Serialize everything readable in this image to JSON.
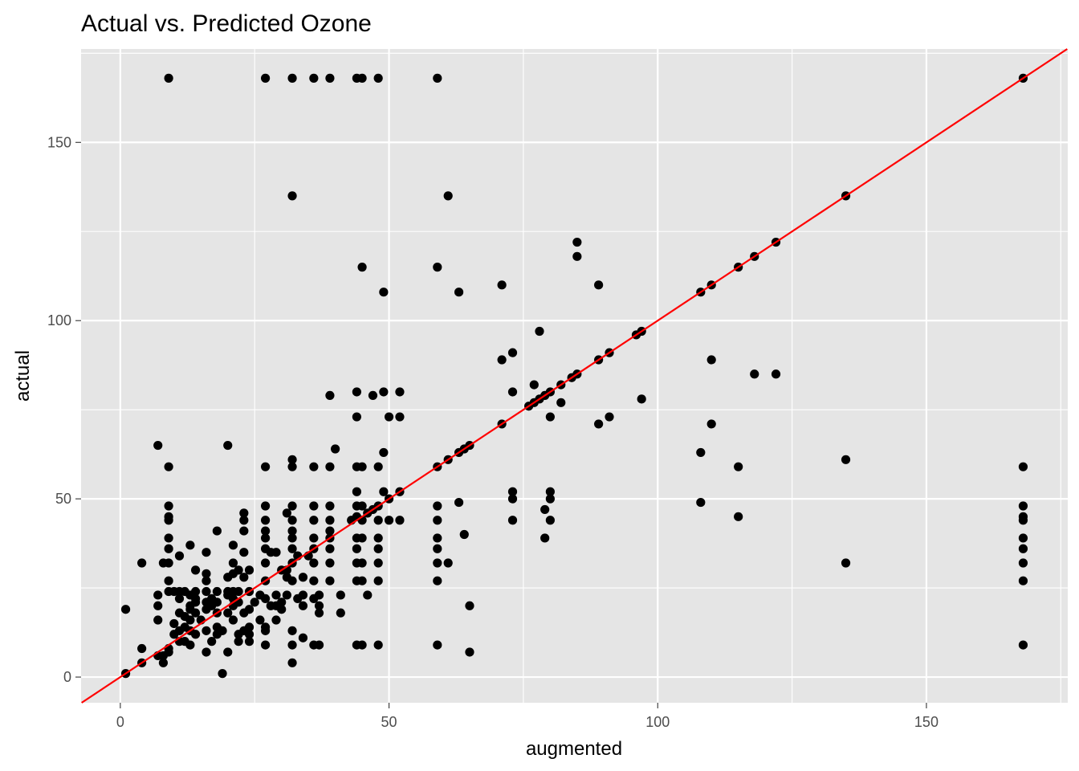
{
  "chart_data": {
    "type": "scatter",
    "title": "Actual vs. Predicted Ozone",
    "xlabel": "augmented",
    "ylabel": "actual",
    "xlim": [
      -7.3,
      176.3
    ],
    "ylim": [
      -7.2,
      176.2
    ],
    "xticks": [
      0,
      50,
      100,
      150
    ],
    "yticks": [
      0,
      50,
      100,
      150
    ],
    "grid": true,
    "colors": {
      "panel": "#e5e5e5",
      "grid": "#ffffff",
      "points": "#000000",
      "reference_line": "#ff0000",
      "tick_label": "#4d4d4d"
    },
    "reference_line": {
      "slope": 1,
      "intercept": 0
    },
    "points": [
      [
        9,
        168
      ],
      [
        27,
        168
      ],
      [
        32,
        168
      ],
      [
        36,
        168
      ],
      [
        39,
        168
      ],
      [
        44,
        168
      ],
      [
        45,
        168
      ],
      [
        48,
        168
      ],
      [
        59,
        168
      ],
      [
        168,
        168
      ],
      [
        32,
        135
      ],
      [
        61,
        135
      ],
      [
        135,
        135
      ],
      [
        85,
        122
      ],
      [
        122,
        122
      ],
      [
        85,
        118
      ],
      [
        118,
        118
      ],
      [
        45,
        115
      ],
      [
        59,
        115
      ],
      [
        115,
        115
      ],
      [
        71,
        110
      ],
      [
        89,
        110
      ],
      [
        110,
        110
      ],
      [
        49,
        108
      ],
      [
        63,
        108
      ],
      [
        108,
        108
      ],
      [
        78,
        97
      ],
      [
        97,
        97
      ],
      [
        96,
        96
      ],
      [
        73,
        91
      ],
      [
        91,
        91
      ],
      [
        71,
        89
      ],
      [
        89,
        89
      ],
      [
        110,
        89
      ],
      [
        118,
        85
      ],
      [
        122,
        85
      ],
      [
        84,
        84
      ],
      [
        85,
        85
      ],
      [
        82,
        82
      ],
      [
        77,
        82
      ],
      [
        39,
        79
      ],
      [
        47,
        79
      ],
      [
        80,
        80
      ],
      [
        44,
        80
      ],
      [
        49,
        80
      ],
      [
        52,
        80
      ],
      [
        73,
        80
      ],
      [
        79,
        79
      ],
      [
        78,
        78
      ],
      [
        97,
        78
      ],
      [
        77,
        77
      ],
      [
        82,
        77
      ],
      [
        76,
        76
      ],
      [
        44,
        73
      ],
      [
        50,
        73
      ],
      [
        52,
        73
      ],
      [
        80,
        73
      ],
      [
        91,
        73
      ],
      [
        71,
        71
      ],
      [
        89,
        71
      ],
      [
        110,
        71
      ],
      [
        7,
        65
      ],
      [
        20,
        65
      ],
      [
        65,
        65
      ],
      [
        64,
        64
      ],
      [
        40,
        64
      ],
      [
        63,
        63
      ],
      [
        108,
        63
      ],
      [
        49,
        63
      ],
      [
        32,
        61
      ],
      [
        61,
        61
      ],
      [
        135,
        61
      ],
      [
        9,
        59
      ],
      [
        27,
        59
      ],
      [
        32,
        59
      ],
      [
        36,
        59
      ],
      [
        39,
        59
      ],
      [
        44,
        59
      ],
      [
        45,
        59
      ],
      [
        48,
        59
      ],
      [
        59,
        59
      ],
      [
        115,
        59
      ],
      [
        168,
        59
      ],
      [
        44,
        52
      ],
      [
        49,
        52
      ],
      [
        52,
        52
      ],
      [
        73,
        52
      ],
      [
        80,
        52
      ],
      [
        73,
        50
      ],
      [
        80,
        50
      ],
      [
        50,
        50
      ],
      [
        108,
        49
      ],
      [
        63,
        49
      ],
      [
        9,
        48
      ],
      [
        27,
        48
      ],
      [
        32,
        48
      ],
      [
        36,
        48
      ],
      [
        39,
        48
      ],
      [
        44,
        48
      ],
      [
        45,
        48
      ],
      [
        48,
        48
      ],
      [
        59,
        48
      ],
      [
        168,
        48
      ],
      [
        79,
        47
      ],
      [
        23,
        46
      ],
      [
        31,
        46
      ],
      [
        47,
        47
      ],
      [
        46,
        46
      ],
      [
        9,
        45
      ],
      [
        44,
        45
      ],
      [
        115,
        45
      ],
      [
        168,
        45
      ],
      [
        9,
        44
      ],
      [
        23,
        44
      ],
      [
        27,
        44
      ],
      [
        32,
        44
      ],
      [
        36,
        44
      ],
      [
        39,
        44
      ],
      [
        43,
        44
      ],
      [
        45,
        44
      ],
      [
        48,
        44
      ],
      [
        50,
        44
      ],
      [
        52,
        44
      ],
      [
        59,
        44
      ],
      [
        73,
        44
      ],
      [
        80,
        44
      ],
      [
        168,
        44
      ],
      [
        18,
        41
      ],
      [
        23,
        41
      ],
      [
        27,
        41
      ],
      [
        32,
        41
      ],
      [
        39,
        41
      ],
      [
        64,
        40
      ],
      [
        9,
        39
      ],
      [
        27,
        39
      ],
      [
        32,
        39
      ],
      [
        36,
        39
      ],
      [
        39,
        39
      ],
      [
        44,
        39
      ],
      [
        45,
        39
      ],
      [
        48,
        39
      ],
      [
        59,
        39
      ],
      [
        79,
        39
      ],
      [
        168,
        39
      ],
      [
        13,
        37
      ],
      [
        21,
        37
      ],
      [
        9,
        36
      ],
      [
        27,
        36
      ],
      [
        32,
        36
      ],
      [
        36,
        36
      ],
      [
        39,
        36
      ],
      [
        44,
        36
      ],
      [
        48,
        36
      ],
      [
        59,
        36
      ],
      [
        168,
        36
      ],
      [
        16,
        35
      ],
      [
        28,
        35
      ],
      [
        29,
        35
      ],
      [
        23,
        35
      ],
      [
        11,
        34
      ],
      [
        35,
        34
      ],
      [
        33,
        34
      ],
      [
        4,
        32
      ],
      [
        8,
        32
      ],
      [
        9,
        32
      ],
      [
        21,
        32
      ],
      [
        27,
        32
      ],
      [
        32,
        32
      ],
      [
        36,
        32
      ],
      [
        39,
        32
      ],
      [
        44,
        32
      ],
      [
        45,
        32
      ],
      [
        48,
        32
      ],
      [
        59,
        32
      ],
      [
        61,
        32
      ],
      [
        135,
        32
      ],
      [
        168,
        32
      ],
      [
        14,
        30
      ],
      [
        30,
        30
      ],
      [
        22,
        30
      ],
      [
        24,
        30
      ],
      [
        31,
        30
      ],
      [
        16,
        29
      ],
      [
        21,
        29
      ],
      [
        23,
        28
      ],
      [
        34,
        28
      ],
      [
        31,
        28
      ],
      [
        20,
        28
      ],
      [
        9,
        27
      ],
      [
        16,
        27
      ],
      [
        27,
        27
      ],
      [
        32,
        27
      ],
      [
        36,
        27
      ],
      [
        39,
        27
      ],
      [
        44,
        27
      ],
      [
        45,
        27
      ],
      [
        48,
        27
      ],
      [
        59,
        27
      ],
      [
        168,
        27
      ],
      [
        9,
        24
      ],
      [
        10,
        24
      ],
      [
        11,
        24
      ],
      [
        12,
        24
      ],
      [
        14,
        24
      ],
      [
        16,
        24
      ],
      [
        18,
        24
      ],
      [
        20,
        24
      ],
      [
        21,
        24
      ],
      [
        22,
        24
      ],
      [
        24,
        24
      ],
      [
        7,
        23
      ],
      [
        13,
        23
      ],
      [
        20,
        23
      ],
      [
        26,
        23
      ],
      [
        29,
        23
      ],
      [
        31,
        23
      ],
      [
        34,
        23
      ],
      [
        37,
        23
      ],
      [
        41,
        23
      ],
      [
        46,
        23
      ],
      [
        11,
        22
      ],
      [
        14,
        22
      ],
      [
        17,
        22
      ],
      [
        21,
        22
      ],
      [
        27,
        22
      ],
      [
        33,
        22
      ],
      [
        36,
        22
      ],
      [
        14,
        21
      ],
      [
        16,
        21
      ],
      [
        18,
        21
      ],
      [
        22,
        21
      ],
      [
        25,
        21
      ],
      [
        30,
        21
      ],
      [
        7,
        20
      ],
      [
        13,
        20
      ],
      [
        17,
        20
      ],
      [
        21,
        20
      ],
      [
        28,
        20
      ],
      [
        29,
        20
      ],
      [
        34,
        20
      ],
      [
        37,
        20
      ],
      [
        65,
        20
      ],
      [
        1,
        19
      ],
      [
        13,
        19
      ],
      [
        16,
        19
      ],
      [
        24,
        19
      ],
      [
        30,
        19
      ],
      [
        11,
        18
      ],
      [
        14,
        18
      ],
      [
        18,
        18
      ],
      [
        20,
        18
      ],
      [
        23,
        18
      ],
      [
        37,
        18
      ],
      [
        41,
        18
      ],
      [
        12,
        17
      ],
      [
        13,
        16
      ],
      [
        7,
        16
      ],
      [
        15,
        16
      ],
      [
        21,
        16
      ],
      [
        26,
        16
      ],
      [
        29,
        16
      ],
      [
        10,
        15
      ],
      [
        12,
        14
      ],
      [
        18,
        14
      ],
      [
        24,
        14
      ],
      [
        27,
        14
      ],
      [
        11,
        13
      ],
      [
        13,
        13
      ],
      [
        16,
        13
      ],
      [
        19,
        13
      ],
      [
        23,
        13
      ],
      [
        27,
        13
      ],
      [
        32,
        13
      ],
      [
        10,
        12
      ],
      [
        14,
        12
      ],
      [
        18,
        12
      ],
      [
        22,
        12
      ],
      [
        24,
        12
      ],
      [
        34,
        11
      ],
      [
        11,
        10
      ],
      [
        12,
        10
      ],
      [
        13,
        9
      ],
      [
        17,
        10
      ],
      [
        22,
        10
      ],
      [
        24,
        10
      ],
      [
        27,
        9
      ],
      [
        32,
        9
      ],
      [
        36,
        9
      ],
      [
        37,
        9
      ],
      [
        44,
        9
      ],
      [
        45,
        9
      ],
      [
        48,
        9
      ],
      [
        59,
        9
      ],
      [
        168,
        9
      ],
      [
        4,
        8
      ],
      [
        9,
        8
      ],
      [
        16,
        7
      ],
      [
        20,
        7
      ],
      [
        65,
        7
      ],
      [
        8,
        6
      ],
      [
        7,
        6
      ],
      [
        9,
        7
      ],
      [
        8,
        4
      ],
      [
        4,
        4
      ],
      [
        32,
        4
      ],
      [
        1,
        1
      ],
      [
        19,
        1
      ]
    ]
  }
}
